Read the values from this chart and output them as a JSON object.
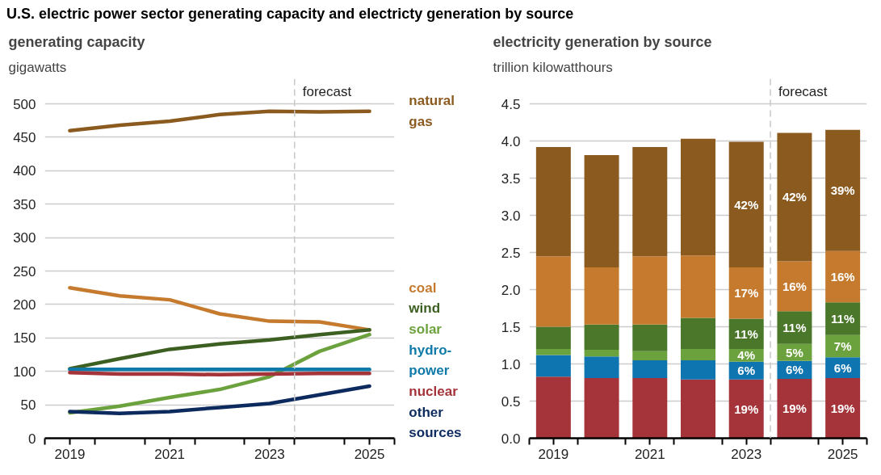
{
  "chart_data": [
    {
      "type": "line",
      "title": "U.S. electric power sector generating capacity and electricty generation by source",
      "subtitle": "generating capacity",
      "ylabel": "gigawatts",
      "x": [
        2019,
        2020,
        2021,
        2022,
        2023,
        2024,
        2025
      ],
      "series": [
        {
          "name": "natural gas",
          "color": "#8b5a1f",
          "values": [
            460,
            468,
            474,
            484,
            489,
            488,
            489
          ]
        },
        {
          "name": "coal",
          "color": "#c57a2e",
          "values": [
            225,
            213,
            207,
            186,
            175,
            174,
            162
          ]
        },
        {
          "name": "wind",
          "color": "#3d5f22",
          "values": [
            104,
            119,
            133,
            141,
            147,
            155,
            162
          ]
        },
        {
          "name": "solar",
          "color": "#6ca23d",
          "values": [
            38,
            48,
            61,
            73,
            92,
            130,
            155
          ]
        },
        {
          "name": "hydro-power",
          "color": "#0f7aaa",
          "values": [
            103,
            103,
            103,
            103,
            103,
            103,
            103
          ]
        },
        {
          "name": "nuclear",
          "color": "#a4343a",
          "values": [
            98,
            96,
            96,
            95,
            96,
            97,
            97
          ]
        },
        {
          "name": "other sources",
          "color": "#0c2a5e",
          "values": [
            40,
            37,
            40,
            46,
            52,
            65,
            78
          ]
        }
      ],
      "xlim": [
        2018.5,
        2025.5
      ],
      "xticks": [
        {
          "value": 2018.5,
          "label": null
        },
        {
          "value": 2019,
          "label": "2019"
        },
        {
          "value": 2019.5,
          "label": null
        },
        {
          "value": 2020.5,
          "label": null
        },
        {
          "value": 2021,
          "label": "2021"
        },
        {
          "value": 2021.5,
          "label": null
        },
        {
          "value": 2022.5,
          "label": null
        },
        {
          "value": 2023,
          "label": "2023"
        },
        {
          "value": 2023.5,
          "label": null
        },
        {
          "value": 2024.5,
          "label": null
        },
        {
          "value": 2025,
          "label": "2025"
        },
        {
          "value": 2025.5,
          "label": null
        }
      ],
      "ylim": [
        0,
        500
      ],
      "yticks": [
        0,
        50,
        100,
        150,
        200,
        250,
        300,
        350,
        400,
        450,
        500
      ],
      "grid": "y",
      "ref_lines": [
        {
          "axis": "x",
          "value": 2023.5,
          "label": "forecast",
          "color": "#c8c8c8",
          "line_style": "dashed"
        }
      ]
    },
    {
      "type": "bar",
      "stacked": true,
      "title": "electricity generation by source",
      "ylabel": "trillion kilowatthours",
      "x": [
        2019,
        2020,
        2021,
        2022,
        2023,
        2024,
        2025
      ],
      "series": [
        {
          "color": "#a4343a",
          "values": [
            0.83,
            0.81,
            0.81,
            0.79,
            0.79,
            0.8,
            0.81
          ]
        },
        {
          "color": "#0f75b1",
          "values": [
            0.29,
            0.29,
            0.24,
            0.26,
            0.24,
            0.24,
            0.28
          ]
        },
        {
          "color": "#6ca23d",
          "values": [
            0.08,
            0.09,
            0.12,
            0.15,
            0.17,
            0.23,
            0.3
          ]
        },
        {
          "color": "#4a7729",
          "values": [
            0.3,
            0.34,
            0.36,
            0.42,
            0.41,
            0.44,
            0.44
          ]
        },
        {
          "color": "#c57a2e",
          "values": [
            0.95,
            0.77,
            0.92,
            0.84,
            0.69,
            0.67,
            0.69
          ]
        },
        {
          "color": "#8b5a1f",
          "values": [
            1.47,
            1.51,
            1.47,
            1.57,
            1.69,
            1.73,
            1.63
          ]
        }
      ],
      "annotations": [
        "19%",
        "6%",
        "4%",
        "11%",
        "17%",
        "42%",
        "19%",
        "6%",
        "5%",
        "11%",
        "16%",
        "42%",
        "19%",
        "6%",
        "7%",
        "11%",
        "16%",
        "39%"
      ],
      "xlim": [
        2018.5,
        2025.5
      ],
      "xticks": [
        {
          "value": 2018.5,
          "label": null
        },
        {
          "value": 2019,
          "label": "2019"
        },
        {
          "value": 2019.5,
          "label": null
        },
        {
          "value": 2020.5,
          "label": null
        },
        {
          "value": 2021,
          "label": "2021"
        },
        {
          "value": 2021.5,
          "label": null
        },
        {
          "value": 2022.5,
          "label": null
        },
        {
          "value": 2023,
          "label": "2023"
        },
        {
          "value": 2023.5,
          "label": null
        },
        {
          "value": 2024.5,
          "label": null
        },
        {
          "value": 2025,
          "label": "2025"
        },
        {
          "value": 2025.5,
          "label": null
        }
      ],
      "ylim": [
        0,
        4.5
      ],
      "yticks": [
        {
          "value": 0,
          "label": "0.0"
        },
        {
          "value": 0.5,
          "label": "0.5"
        },
        {
          "value": 1,
          "label": "1.0"
        },
        {
          "value": 1.5,
          "label": "1.5"
        },
        {
          "value": 2,
          "label": "2.0"
        },
        {
          "value": 2.5,
          "label": "2.5"
        },
        {
          "value": 3,
          "label": "3.0"
        },
        {
          "value": 3.5,
          "label": "3.5"
        },
        {
          "value": 4,
          "label": "4.0"
        },
        {
          "value": 4.5,
          "label": "4.5"
        }
      ],
      "grid": "y",
      "ref_lines": [
        {
          "axis": "x",
          "value": 2023.5,
          "label": "forecast",
          "color": "#c8c8c8",
          "line_style": "dashed"
        }
      ]
    }
  ]
}
